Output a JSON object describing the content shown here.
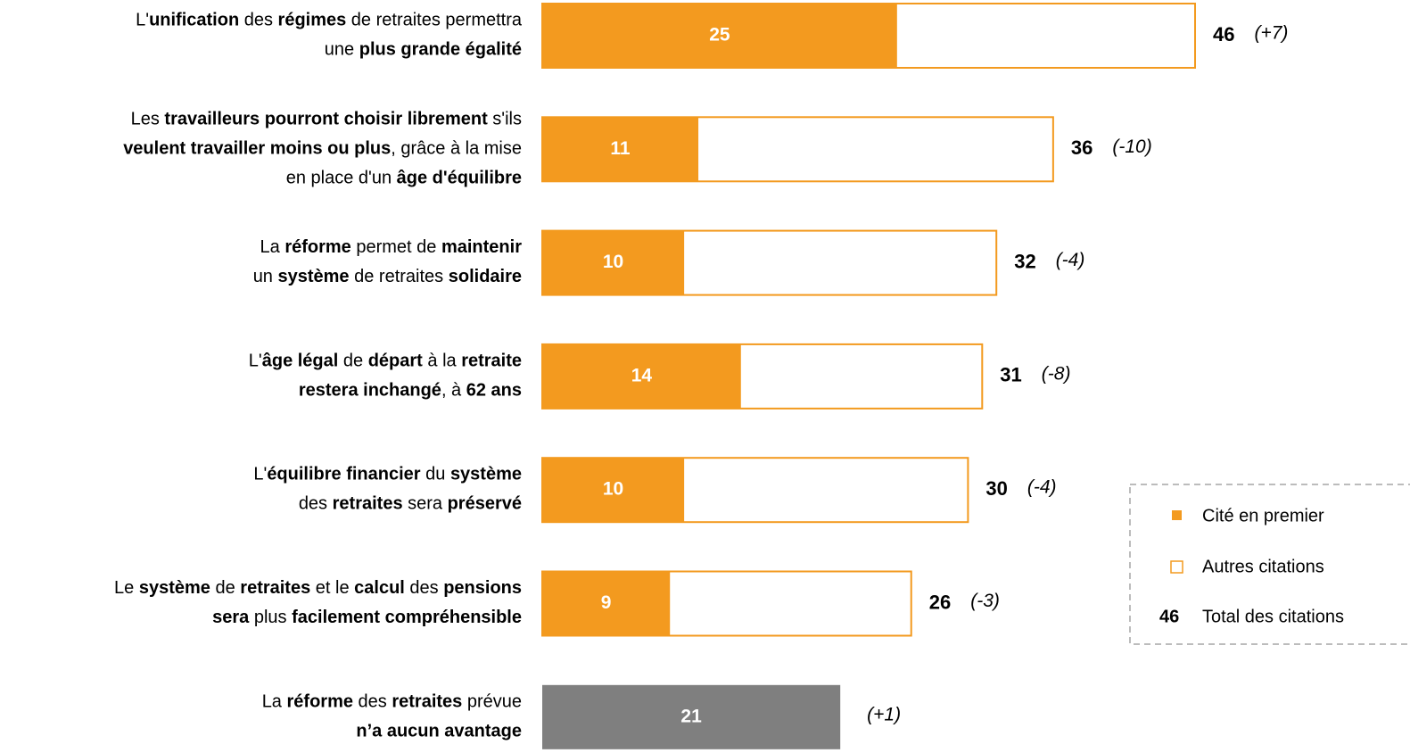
{
  "chart_data": {
    "type": "stacked-bar-horizontal",
    "labels": [
      [
        [
          {
            "t": "L'",
            "b": false
          },
          {
            "t": "unification",
            "b": true
          },
          {
            "t": " des ",
            "b": false
          },
          {
            "t": "régimes",
            "b": true
          },
          {
            "t": " de retraites permettra",
            "b": false
          }
        ],
        [
          {
            "t": "une ",
            "b": false
          },
          {
            "t": "plus grande égalité",
            "b": true
          }
        ]
      ],
      [
        [
          {
            "t": "Les ",
            "b": false
          },
          {
            "t": "travailleurs pourront choisir librement",
            "b": true
          },
          {
            "t": " s'ils",
            "b": false
          }
        ],
        [
          {
            "t": "veulent travailler moins ou plus",
            "b": true
          },
          {
            "t": ", grâce à la mise",
            "b": false
          }
        ],
        [
          {
            "t": "en place d'un ",
            "b": false
          },
          {
            "t": "âge d'équilibre",
            "b": true
          }
        ]
      ],
      [
        [
          {
            "t": "La ",
            "b": false
          },
          {
            "t": "réforme",
            "b": true
          },
          {
            "t": " permet de ",
            "b": false
          },
          {
            "t": "maintenir",
            "b": true
          }
        ],
        [
          {
            "t": "un ",
            "b": false
          },
          {
            "t": "système",
            "b": true
          },
          {
            "t": " de retraites ",
            "b": false
          },
          {
            "t": "solidaire",
            "b": true
          }
        ]
      ],
      [
        [
          {
            "t": "L'",
            "b": false
          },
          {
            "t": "âge légal",
            "b": true
          },
          {
            "t": " de ",
            "b": false
          },
          {
            "t": "départ",
            "b": true
          },
          {
            "t": " à la ",
            "b": false
          },
          {
            "t": "retraite",
            "b": true
          }
        ],
        [
          {
            "t": "restera inchangé",
            "b": true
          },
          {
            "t": ", à ",
            "b": false
          },
          {
            "t": "62 ans",
            "b": true
          }
        ]
      ],
      [
        [
          {
            "t": "L'",
            "b": false
          },
          {
            "t": "équilibre financier",
            "b": true
          },
          {
            "t": " du ",
            "b": false
          },
          {
            "t": "système",
            "b": true
          }
        ],
        [
          {
            "t": "des ",
            "b": false
          },
          {
            "t": "retraites",
            "b": true
          },
          {
            "t": " sera ",
            "b": false
          },
          {
            "t": "préservé",
            "b": true
          }
        ]
      ],
      [
        [
          {
            "t": "Le ",
            "b": false
          },
          {
            "t": "système",
            "b": true
          },
          {
            "t": " de ",
            "b": false
          },
          {
            "t": "retraites",
            "b": true
          },
          {
            "t": " et le ",
            "b": false
          },
          {
            "t": "calcul",
            "b": true
          },
          {
            "t": " des ",
            "b": false
          },
          {
            "t": "pensions",
            "b": true
          }
        ],
        [
          {
            "t": "sera",
            "b": true
          },
          {
            "t": " plus ",
            "b": false
          },
          {
            "t": "facilement compréhensible",
            "b": true
          }
        ]
      ],
      [
        [
          {
            "t": "La ",
            "b": false
          },
          {
            "t": "réforme",
            "b": true
          },
          {
            "t": " des ",
            "b": false
          },
          {
            "t": "retraites",
            "b": true
          },
          {
            "t": " prévue",
            "b": false
          }
        ],
        [
          {
            "t": "n’a aucun avantage",
            "b": true
          }
        ]
      ]
    ],
    "first": {
      "color": "#f39a1f",
      "values": [
        25,
        11,
        10,
        14,
        10,
        9,
        21
      ]
    },
    "totals": {
      "color": "#f39a1f",
      "values": [
        46,
        36,
        32,
        31,
        30,
        26,
        null
      ]
    },
    "no_total_color": "#7f7f7f",
    "changes": [
      7,
      -10,
      -4,
      -8,
      -4,
      -3,
      1
    ],
    "change_labels": [
      "(+7)",
      "(-10)",
      "(-4)",
      "(-8)",
      "(-4)",
      "(-3)",
      "(+1)"
    ],
    "change_colors": [
      "#2ea043",
      "#e00000",
      "#7f7f7f",
      "#e00000",
      "#7f7f7f",
      "#7f7f7f",
      "#7f7f7f"
    ],
    "legend": {
      "first": "Cité en premier",
      "others": "Autres citations",
      "total_example": 46,
      "total": "Total des citations"
    }
  }
}
